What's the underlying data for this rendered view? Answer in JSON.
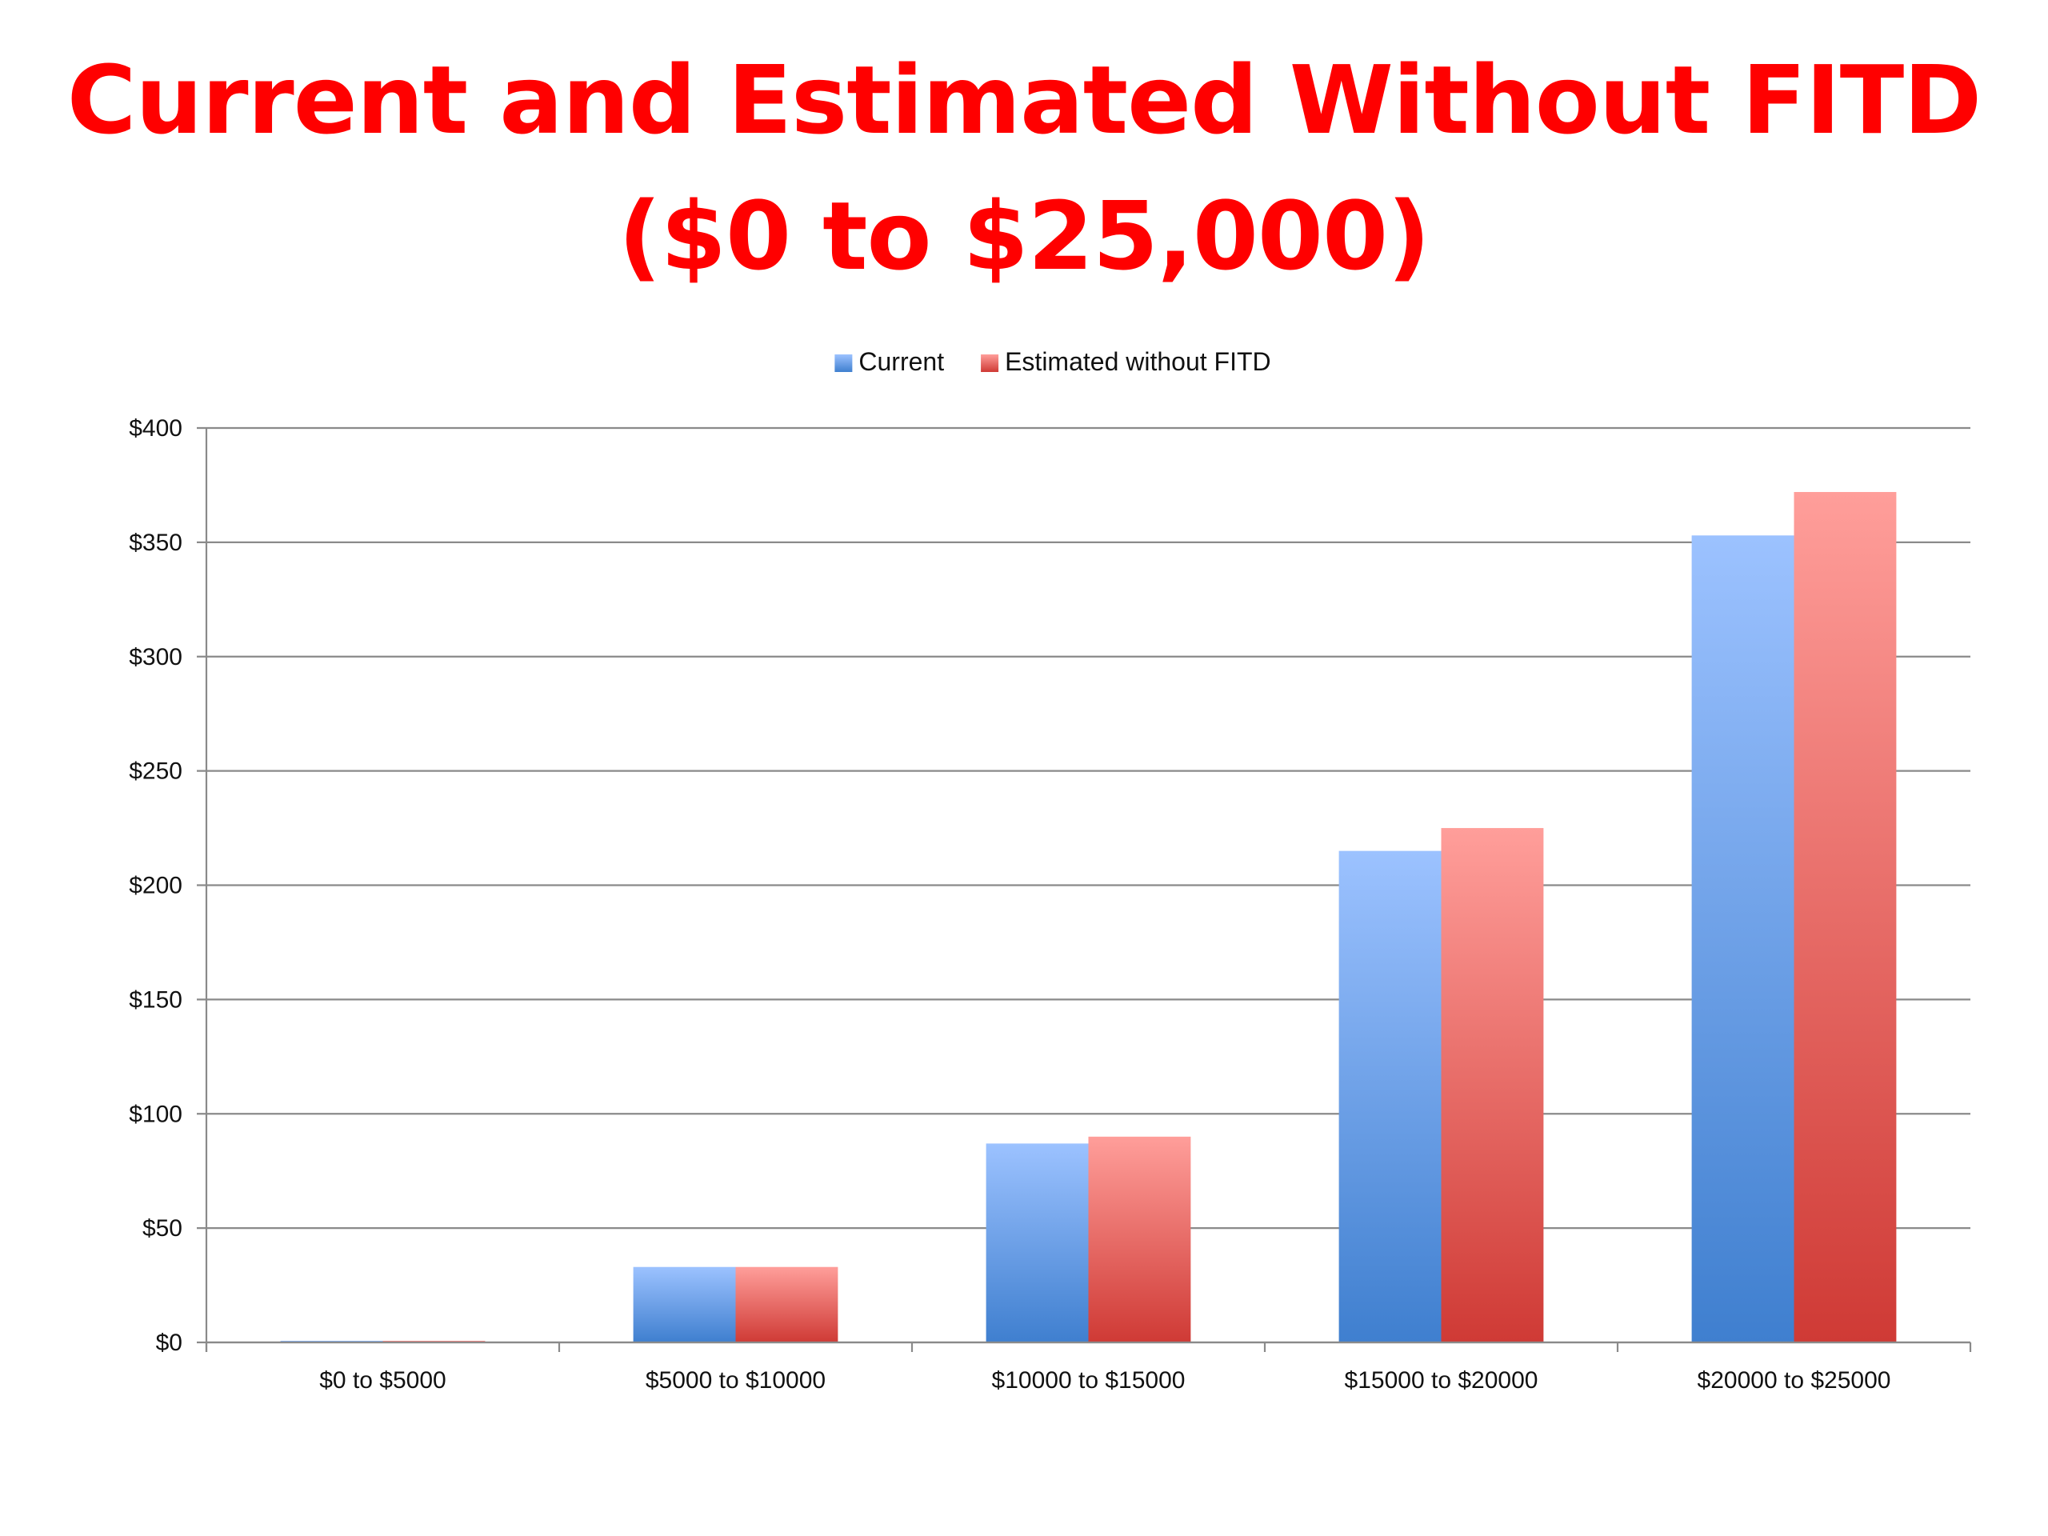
{
  "title": {
    "line1": "Current and Estimated Without FITD",
    "line2": "($0 to $25,000)"
  },
  "chart_data": {
    "type": "bar",
    "categories": [
      "$0 to $5000",
      "$5000 to $10000",
      "$10000 to $15000",
      "$15000 to $20000",
      "$20000 to $25000"
    ],
    "series": [
      {
        "name": "Current",
        "values": [
          0.5,
          33,
          87,
          215,
          353
        ],
        "color_top": "#9cc2ff",
        "color_bottom": "#3f7fcf"
      },
      {
        "name": "Estimated without FITD",
        "values": [
          0.5,
          33,
          90,
          225,
          372
        ],
        "color_top": "#ff9e9a",
        "color_bottom": "#cf3a35"
      }
    ],
    "yticks": [
      "$0",
      "$50",
      "$100",
      "$150",
      "$200",
      "$250",
      "$300",
      "$350",
      "$400"
    ],
    "ylim": [
      0,
      400
    ],
    "ytick_step": 50,
    "grid": true,
    "legend_position": "top-center",
    "xlabel": "",
    "ylabel": ""
  }
}
